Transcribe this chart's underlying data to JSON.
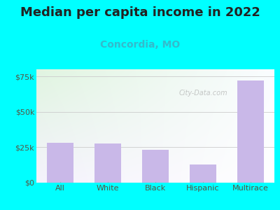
{
  "title": "Median per capita income in 2022",
  "subtitle": "Concordia, MO",
  "categories": [
    "All",
    "White",
    "Black",
    "Hispanic",
    "Multirace"
  ],
  "values": [
    28000,
    27500,
    23000,
    13000,
    72000
  ],
  "bar_color": "#c9b8e8",
  "title_fontsize": 13,
  "subtitle_fontsize": 10,
  "subtitle_color": "#33bbcc",
  "title_color": "#222222",
  "background_outer": "#00ffff",
  "ylim": [
    0,
    80000
  ],
  "yticks": [
    0,
    25000,
    50000,
    75000
  ],
  "ytick_labels": [
    "$0",
    "$25k",
    "$50k",
    "$75k"
  ],
  "tick_color": "#555544",
  "grid_color": "#cccccc",
  "watermark": "City-Data.com"
}
